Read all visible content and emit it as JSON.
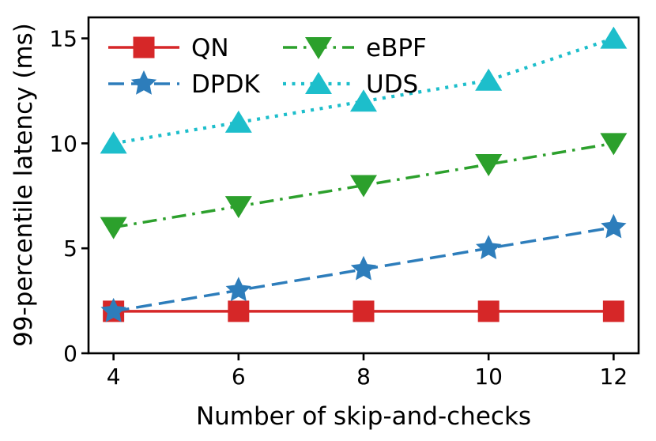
{
  "chart_data": {
    "type": "line",
    "title": "",
    "xlabel": "Number of skip-and-checks",
    "ylabel": "99-percentile latency (ms)",
    "x": [
      4,
      6,
      8,
      10,
      12
    ],
    "xticks": [
      4,
      6,
      8,
      10,
      12
    ],
    "yticks": [
      0,
      5,
      10,
      15
    ],
    "xlim": [
      3.6,
      12.4
    ],
    "ylim": [
      0,
      16
    ],
    "grid": false,
    "legend": {
      "position": "upper-left",
      "columns": 2,
      "frame": false,
      "entries": [
        "QN",
        "DPDK",
        "eBPF",
        "UDS"
      ]
    },
    "series": [
      {
        "name": "QN",
        "values": [
          2,
          2,
          2,
          2,
          2
        ],
        "color": "#d62728",
        "linestyle": "solid",
        "marker": "square"
      },
      {
        "name": "DPDK",
        "values": [
          2,
          3,
          4,
          5,
          6
        ],
        "color": "#2d7dbb",
        "linestyle": "dashed",
        "marker": "star"
      },
      {
        "name": "eBPF",
        "values": [
          6,
          7,
          8,
          9,
          10
        ],
        "color": "#2ca02c",
        "linestyle": "dashdot",
        "marker": "triangle-down"
      },
      {
        "name": "UDS",
        "values": [
          10,
          11,
          12,
          13,
          15
        ],
        "color": "#1dbecb",
        "linestyle": "dotted",
        "marker": "triangle-up"
      }
    ],
    "colors": {
      "axis": "#000000",
      "background": "#ffffff"
    }
  }
}
